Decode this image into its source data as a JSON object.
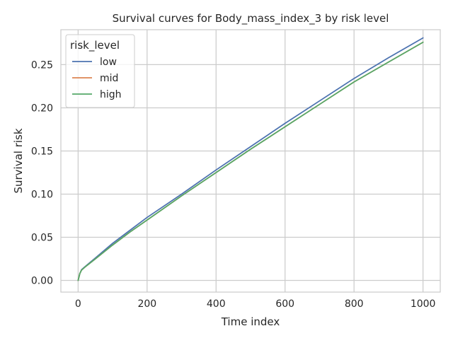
{
  "chart_data": {
    "type": "line",
    "title": "Survival curves for Body_mass_index_3 by risk level",
    "xlabel": "Time index",
    "ylabel": "Survival risk",
    "xlim": [
      -50,
      1050
    ],
    "ylim": [
      -0.0135,
      0.2905
    ],
    "xticks": [
      0,
      200,
      400,
      600,
      800,
      1000
    ],
    "yticks": [
      0.0,
      0.05,
      0.1,
      0.15,
      0.2,
      0.25
    ],
    "ytick_labels": [
      "0.00",
      "0.05",
      "0.10",
      "0.15",
      "0.20",
      "0.25"
    ],
    "grid": true,
    "legend": {
      "title": "risk_level",
      "placement": "top-left"
    },
    "x": [
      0,
      5,
      10,
      20,
      50,
      100,
      150,
      200,
      300,
      400,
      500,
      600,
      700,
      800,
      900,
      1000
    ],
    "series": [
      {
        "name": "low",
        "color": "#4c72b0",
        "values": [
          0.0,
          0.008,
          0.0125,
          0.016,
          0.026,
          0.043,
          0.058,
          0.073,
          0.1,
          0.128,
          0.155,
          0.182,
          0.208,
          0.234,
          0.258,
          0.281
        ]
      },
      {
        "name": "mid",
        "color": "#dd8452",
        "values": [
          0.0,
          0.008,
          0.012,
          0.0155,
          0.025,
          0.041,
          0.056,
          0.07,
          0.098,
          0.125,
          0.152,
          0.178,
          0.204,
          0.23,
          0.253,
          0.276
        ]
      },
      {
        "name": "high",
        "color": "#55a868",
        "values": [
          0.0,
          0.008,
          0.012,
          0.0155,
          0.025,
          0.041,
          0.056,
          0.07,
          0.098,
          0.125,
          0.152,
          0.178,
          0.204,
          0.23,
          0.253,
          0.276
        ]
      }
    ]
  }
}
